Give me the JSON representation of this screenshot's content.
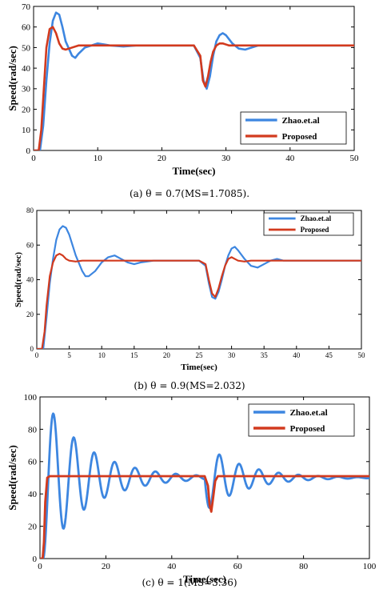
{
  "colors": {
    "zhao": "#3d86e0",
    "proposed": "#d23a1e"
  },
  "chart_data": [
    {
      "type": "line",
      "caption": "(a) θ = 0.7(MS=1.7085).",
      "xlabel": "Time(sec)",
      "ylabel": "Speed(rad/sec)",
      "xlim": [
        0,
        50
      ],
      "ylim": [
        0,
        70
      ],
      "xticks": [
        "0",
        "10",
        "20",
        "30",
        "40",
        "50"
      ],
      "yticks": [
        "0",
        "10",
        "20",
        "30",
        "40",
        "50",
        "60",
        "70"
      ],
      "legend_position": "lower-right",
      "series": [
        {
          "name": "Zhao.et.al",
          "color": "#3d86e0",
          "x": [
            0,
            1,
            1.5,
            2,
            2.5,
            3,
            3.5,
            4,
            4.5,
            5,
            6,
            6.5,
            7,
            8,
            9,
            10,
            11,
            12,
            14,
            16,
            20,
            25,
            26,
            26.5,
            27,
            27.5,
            28,
            28.5,
            29,
            29.5,
            30,
            30.5,
            31,
            32,
            33,
            34,
            35,
            36,
            37,
            38,
            40,
            45,
            50
          ],
          "y": [
            0,
            0,
            12,
            34,
            52,
            63,
            67,
            66,
            60,
            53,
            46,
            45,
            47,
            50,
            51,
            52,
            51.5,
            51,
            50.5,
            51,
            51,
            51,
            45,
            34,
            30,
            36,
            46,
            53,
            56,
            57,
            56,
            54,
            52,
            49.5,
            49,
            50,
            51,
            51,
            51,
            51,
            51,
            51,
            51
          ]
        },
        {
          "name": "Proposed",
          "color": "#d23a1e",
          "x": [
            0,
            0.8,
            1.2,
            1.5,
            2,
            2.5,
            3,
            3.5,
            4,
            4.5,
            5,
            6,
            7,
            8,
            9,
            10,
            12,
            14,
            20,
            25,
            26,
            26.4,
            26.8,
            27.2,
            27.6,
            28,
            28.5,
            29,
            29.5,
            30,
            30.5,
            31,
            32,
            34,
            36,
            40,
            45,
            50
          ],
          "y": [
            0,
            0,
            10,
            25,
            50,
            59,
            60,
            57,
            52,
            49.5,
            49,
            50,
            51,
            51,
            51,
            51,
            51,
            51,
            51,
            51,
            46,
            34,
            31,
            36,
            43,
            48,
            51,
            52,
            52,
            51.5,
            51,
            51,
            51,
            51,
            51,
            51,
            51,
            51
          ]
        }
      ]
    },
    {
      "type": "line",
      "caption": "(b) θ = 0.9(MS=2.032)",
      "xlabel": "Time(sec)",
      "ylabel": "Speed(rad/sec)",
      "xlim": [
        0,
        50
      ],
      "ylim": [
        0,
        80
      ],
      "xticks": [
        "0",
        "5",
        "10",
        "15",
        "20",
        "25",
        "30",
        "35",
        "40",
        "45",
        "50"
      ],
      "yticks": [
        "0",
        "20",
        "40",
        "60",
        "80"
      ],
      "legend_position": "top-right",
      "series": [
        {
          "name": "Zhao.et.al",
          "color": "#3d86e0",
          "x": [
            0,
            1,
            1.5,
            2,
            2.5,
            3,
            3.5,
            4,
            4.5,
            5,
            5.5,
            6,
            7,
            7.5,
            8,
            9,
            10,
            11,
            12,
            13,
            14,
            15,
            16,
            18,
            20,
            25,
            26,
            26.5,
            27,
            27.5,
            28,
            28.5,
            29,
            29.5,
            30,
            30.5,
            31,
            32,
            33,
            34,
            35,
            36,
            37,
            38,
            40,
            45,
            50
          ],
          "y": [
            0,
            0,
            18,
            38,
            52,
            63,
            69,
            71,
            70,
            66,
            60,
            54,
            45,
            42,
            42,
            45,
            50,
            53,
            54,
            52,
            50,
            49,
            50,
            51,
            51,
            51,
            48,
            38,
            30,
            29,
            33,
            40,
            48,
            54,
            58,
            59,
            57,
            52,
            48,
            47,
            49,
            51,
            52,
            51,
            51,
            51,
            51
          ]
        },
        {
          "name": "Proposed",
          "color": "#d23a1e",
          "x": [
            0,
            0.8,
            1.2,
            1.5,
            2,
            2.5,
            3,
            3.5,
            4,
            4.5,
            5,
            6,
            7,
            8,
            10,
            15,
            20,
            25,
            26,
            26.5,
            27,
            27.5,
            28,
            28.5,
            29,
            29.5,
            30,
            30.5,
            31,
            32,
            33,
            34,
            36,
            40,
            45,
            50
          ],
          "y": [
            0,
            0,
            10,
            25,
            42,
            50,
            54,
            55,
            54,
            52,
            51,
            50.5,
            51,
            51,
            51,
            51,
            51,
            51,
            49,
            40,
            32,
            30,
            35,
            42,
            48,
            52,
            53,
            52,
            51,
            50.5,
            51,
            51,
            51,
            51,
            51,
            51
          ]
        }
      ]
    },
    {
      "type": "line",
      "caption": "(c) θ = 1(MS=3.36)",
      "xlabel": "Time(sec)",
      "ylabel": "Speed(rad/sec)",
      "xlim": [
        0,
        100
      ],
      "ylim": [
        0,
        100
      ],
      "xticks": [
        "0",
        "20",
        "40",
        "60",
        "80",
        "100"
      ],
      "yticks": [
        "0",
        "20",
        "40",
        "60",
        "80",
        "100"
      ],
      "legend_position": "top-right",
      "series": [
        {
          "name": "Zhao.et.al",
          "color": "#3d86e0",
          "x": [],
          "y": []
        },
        {
          "name": "Proposed",
          "color": "#d23a1e",
          "x": [
            0,
            0.8,
            1.2,
            1.6,
            2.2,
            3,
            4,
            50,
            51,
            51.5,
            52,
            52.6,
            53.2,
            54,
            56,
            60,
            100
          ],
          "y": [
            0,
            0,
            10,
            35,
            50,
            51,
            51,
            51,
            45,
            33,
            29,
            38,
            48,
            51,
            51,
            51,
            51
          ]
        }
      ]
    }
  ]
}
